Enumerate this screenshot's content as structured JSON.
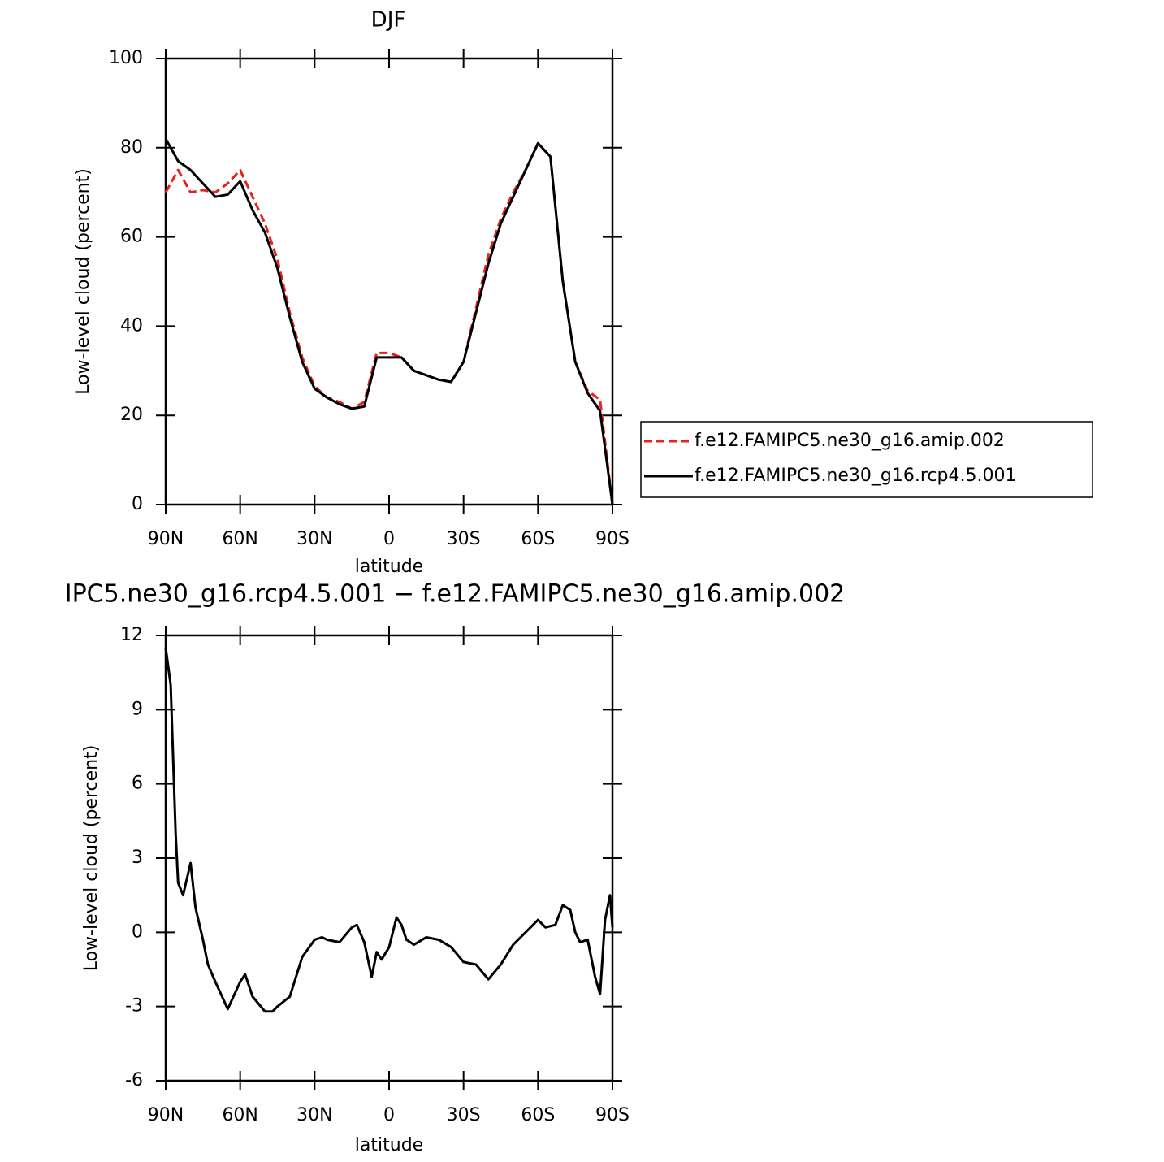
{
  "chart_data": [
    {
      "type": "line",
      "title": "DJF",
      "xlabel": "latitude",
      "ylabel": "Low-level cloud (percent)",
      "x": [
        90,
        85,
        80,
        75,
        70,
        65,
        60,
        55,
        50,
        45,
        40,
        35,
        30,
        25,
        20,
        15,
        10,
        5,
        0,
        -5,
        -10,
        -15,
        -20,
        -25,
        -30,
        -35,
        -40,
        -45,
        -50,
        -55,
        -60,
        -65,
        -70,
        -75,
        -80,
        -85,
        -90
      ],
      "series": [
        {
          "name": "f.e12.FAMIPC5.ne30_g16.amip.002",
          "color": "#e8201e",
          "style": "dashed",
          "values": [
            70,
            75,
            70,
            70.5,
            70,
            72,
            75,
            69,
            63,
            55,
            43,
            33,
            26.5,
            24,
            23,
            21.5,
            23,
            34,
            34,
            33,
            30,
            29,
            28,
            27.5,
            32,
            44,
            56,
            64,
            70,
            75,
            81,
            78,
            50,
            32,
            25.5,
            23.5,
            0
          ]
        },
        {
          "name": "f.e12.FAMIPC5.ne30_g16.rcp4.5.001",
          "color": "#000000",
          "style": "solid",
          "values": [
            82,
            77,
            75,
            72,
            69,
            69.5,
            72.5,
            66,
            61,
            53,
            42,
            32,
            26,
            24,
            22.5,
            21.5,
            22,
            33,
            33,
            33,
            30,
            29,
            28,
            27.5,
            32,
            43,
            54,
            63,
            69,
            75,
            81,
            78,
            50,
            32,
            25,
            21,
            0
          ]
        }
      ],
      "xlim": [
        90,
        -90
      ],
      "xticks": [
        {
          "value": 90,
          "label": "90N"
        },
        {
          "value": 60,
          "label": "60N"
        },
        {
          "value": 30,
          "label": "30N"
        },
        0,
        {
          "value": -30,
          "label": "30S"
        },
        {
          "value": -60,
          "label": "60S"
        },
        {
          "value": -90,
          "label": "90S"
        }
      ],
      "ylim": [
        0,
        100
      ],
      "yticks": [
        0,
        20,
        40,
        60,
        80,
        100
      ],
      "legend": "outside-right"
    },
    {
      "type": "line",
      "title": "IPC5.ne30_g16.rcp4.5.001 − f.e12.FAMIPC5.ne30_g16.amip.002",
      "xlabel": "latitude",
      "ylabel": "Low-level cloud (percent)",
      "x": [
        90,
        88,
        86,
        85,
        83,
        80,
        78,
        75,
        73,
        70,
        65,
        60,
        58,
        55,
        50,
        47,
        45,
        40,
        35,
        30,
        27,
        25,
        20,
        15,
        13,
        10,
        7,
        5,
        3,
        0,
        -3,
        -5,
        -7,
        -10,
        -15,
        -20,
        -25,
        -30,
        -35,
        -40,
        -45,
        -50,
        -55,
        -60,
        -63,
        -67,
        -70,
        -73,
        -75,
        -77,
        -80,
        -83,
        -85,
        -87,
        -89,
        -90
      ],
      "series": [
        {
          "color": "#000000",
          "style": "solid",
          "values": [
            11.5,
            10,
            4,
            2,
            1.5,
            2.8,
            1,
            -0.3,
            -1.3,
            -2,
            -3.1,
            -2,
            -1.7,
            -2.6,
            -3.2,
            -3.2,
            -3,
            -2.6,
            -1,
            -0.3,
            -0.2,
            -0.3,
            -0.4,
            0.2,
            0.3,
            -0.4,
            -1.8,
            -0.8,
            -1.1,
            -0.6,
            0.6,
            0.3,
            -0.3,
            -0.5,
            -0.2,
            -0.3,
            -0.6,
            -1.2,
            -1.3,
            -1.9,
            -1.3,
            -0.5,
            0,
            0.5,
            0.2,
            0.3,
            1.1,
            0.9,
            0,
            -0.4,
            -0.3,
            -1.8,
            -2.5,
            0.5,
            1.5,
            0.2
          ]
        }
      ],
      "xlim": [
        90,
        -90
      ],
      "xticks": [
        {
          "value": 90,
          "label": "90N"
        },
        {
          "value": 60,
          "label": "60N"
        },
        {
          "value": 30,
          "label": "30N"
        },
        0,
        {
          "value": -30,
          "label": "30S"
        },
        {
          "value": -60,
          "label": "60S"
        },
        {
          "value": -90,
          "label": "90S"
        }
      ],
      "ylim": [
        -6,
        12
      ],
      "yticks": [
        -6,
        -3,
        0,
        3,
        6,
        9,
        12
      ]
    }
  ]
}
